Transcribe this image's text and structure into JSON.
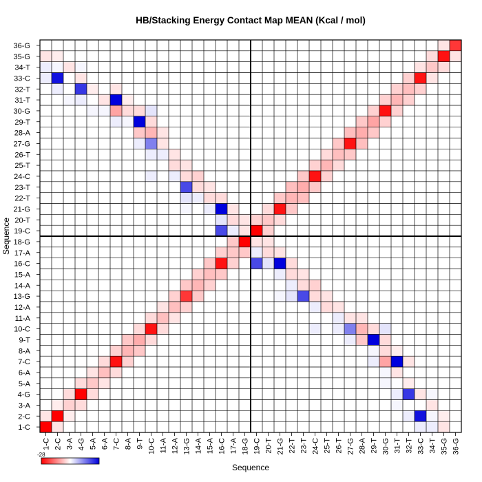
{
  "chart_data": {
    "type": "heatmap",
    "title": "HB/Stacking Energy Contact Map MEAN (Kcal / mol)",
    "xlabel": "Sequence",
    "ylabel": "Sequence",
    "labels": [
      "1-C",
      "2-C",
      "3-A",
      "4-G",
      "5-A",
      "6-A",
      "7-C",
      "8-A",
      "9-T",
      "10-C",
      "11-A",
      "12-A",
      "13-G",
      "14-A",
      "15-A",
      "16-C",
      "17-A",
      "18-G",
      "19-C",
      "20-T",
      "21-G",
      "22-T",
      "23-T",
      "24-C",
      "25-T",
      "26-T",
      "27-G",
      "28-A",
      "29-T",
      "30-G",
      "31-T",
      "32-T",
      "33-C",
      "34-T",
      "35-G",
      "36-G"
    ],
    "colorbar": {
      "min_label": "-28",
      "colors": [
        "#ff0000",
        "#ffffff",
        "#0000dd"
      ]
    },
    "value_range": [
      -28,
      28
    ],
    "strand_divider_after": "18-G",
    "grid": true,
    "cells": [
      [
        1,
        1,
        -28
      ],
      [
        2,
        2,
        -28
      ],
      [
        3,
        3,
        -5
      ],
      [
        4,
        4,
        -28
      ],
      [
        5,
        5,
        -6
      ],
      [
        6,
        6,
        -7
      ],
      [
        7,
        7,
        -26
      ],
      [
        8,
        8,
        -8
      ],
      [
        9,
        9,
        -9
      ],
      [
        10,
        10,
        -26
      ],
      [
        11,
        11,
        -7
      ],
      [
        12,
        12,
        -7
      ],
      [
        13,
        13,
        -22
      ],
      [
        14,
        14,
        -8
      ],
      [
        15,
        15,
        -7
      ],
      [
        16,
        16,
        -26
      ],
      [
        17,
        17,
        -6
      ],
      [
        18,
        18,
        -28
      ],
      [
        19,
        19,
        -28
      ],
      [
        20,
        20,
        -6
      ],
      [
        21,
        21,
        -26
      ],
      [
        22,
        22,
        -8
      ],
      [
        23,
        23,
        -9
      ],
      [
        24,
        24,
        -26
      ],
      [
        25,
        25,
        -8
      ],
      [
        26,
        26,
        -7
      ],
      [
        27,
        27,
        -26
      ],
      [
        28,
        28,
        -9
      ],
      [
        29,
        29,
        -10
      ],
      [
        30,
        30,
        -26
      ],
      [
        31,
        31,
        -8
      ],
      [
        32,
        32,
        -7
      ],
      [
        33,
        33,
        -26
      ],
      [
        34,
        34,
        -6
      ],
      [
        35,
        35,
        -26
      ],
      [
        36,
        36,
        -22
      ],
      [
        1,
        2,
        -3
      ],
      [
        2,
        3,
        -2
      ],
      [
        3,
        4,
        -4
      ],
      [
        4,
        5,
        -4
      ],
      [
        5,
        6,
        -3
      ],
      [
        6,
        7,
        -4
      ],
      [
        7,
        8,
        -5
      ],
      [
        8,
        9,
        -6
      ],
      [
        9,
        10,
        -4
      ],
      [
        10,
        11,
        -4
      ],
      [
        11,
        12,
        -3
      ],
      [
        12,
        13,
        -5
      ],
      [
        13,
        14,
        -6
      ],
      [
        14,
        15,
        -5
      ],
      [
        15,
        16,
        -6
      ],
      [
        16,
        17,
        -5
      ],
      [
        17,
        18,
        -6
      ],
      [
        19,
        20,
        -5
      ],
      [
        20,
        21,
        -4
      ],
      [
        21,
        22,
        -6
      ],
      [
        22,
        23,
        -7
      ],
      [
        23,
        24,
        -6
      ],
      [
        24,
        25,
        -5
      ],
      [
        25,
        26,
        -4
      ],
      [
        26,
        27,
        -6
      ],
      [
        27,
        28,
        -7
      ],
      [
        28,
        29,
        -6
      ],
      [
        29,
        30,
        -5
      ],
      [
        30,
        31,
        -5
      ],
      [
        31,
        32,
        -5
      ],
      [
        32,
        33,
        -5
      ],
      [
        33,
        34,
        -3
      ],
      [
        34,
        35,
        -4
      ],
      [
        35,
        36,
        -3
      ],
      [
        2,
        33,
        26
      ],
      [
        4,
        32,
        22
      ],
      [
        7,
        31,
        28
      ],
      [
        9,
        29,
        28
      ],
      [
        10,
        27,
        14
      ],
      [
        13,
        23,
        20
      ],
      [
        16,
        21,
        28
      ],
      [
        16,
        19,
        20
      ],
      [
        7,
        30,
        -10
      ],
      [
        10,
        28,
        -8
      ],
      [
        9,
        28,
        -6
      ],
      [
        12,
        25,
        -4
      ],
      [
        14,
        24,
        -5
      ],
      [
        13,
        24,
        -4
      ],
      [
        1,
        35,
        -3
      ],
      [
        2,
        35,
        -2
      ],
      [
        3,
        34,
        -3
      ],
      [
        4,
        33,
        -3
      ],
      [
        5,
        32,
        -2
      ],
      [
        6,
        31,
        -3
      ],
      [
        7,
        32,
        -3
      ],
      [
        8,
        30,
        -4
      ],
      [
        8,
        31,
        -2
      ],
      [
        9,
        30,
        -4
      ],
      [
        10,
        29,
        -4
      ],
      [
        11,
        27,
        -3
      ],
      [
        11,
        28,
        -3
      ],
      [
        12,
        26,
        -3
      ],
      [
        13,
        25,
        -3
      ],
      [
        14,
        23,
        -4
      ],
      [
        15,
        22,
        -4
      ],
      [
        15,
        23,
        -3
      ],
      [
        16,
        22,
        -4
      ],
      [
        17,
        20,
        -4
      ],
      [
        17,
        21,
        -3
      ],
      [
        18,
        19,
        -3
      ],
      [
        18,
        20,
        -3
      ],
      [
        1,
        33,
        2
      ],
      [
        1,
        34,
        2
      ],
      [
        2,
        34,
        1
      ],
      [
        3,
        31,
        1
      ],
      [
        4,
        31,
        2
      ],
      [
        5,
        30,
        1
      ],
      [
        6,
        30,
        1
      ],
      [
        7,
        29,
        2
      ],
      [
        8,
        29,
        1
      ],
      [
        10,
        30,
        3
      ],
      [
        10,
        26,
        2
      ],
      [
        11,
        26,
        2
      ],
      [
        12,
        24,
        2
      ],
      [
        13,
        22,
        3
      ],
      [
        14,
        22,
        2
      ],
      [
        15,
        21,
        2
      ],
      [
        16,
        20,
        3
      ],
      [
        17,
        19,
        2
      ],
      [
        2,
        32,
        2
      ],
      [
        4,
        34,
        1
      ],
      [
        9,
        27,
        2
      ],
      [
        10,
        24,
        2
      ],
      [
        13,
        21,
        1
      ]
    ]
  }
}
